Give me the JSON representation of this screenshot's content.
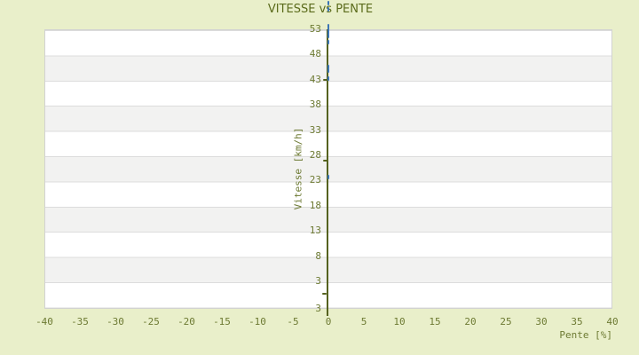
{
  "page": {
    "background": "#e9efca"
  },
  "chart_data": {
    "type": "scatter",
    "title": "VITESSE vs PENTE",
    "xlabel": "Pente [%]",
    "ylabel": "Vitesse [km/h]",
    "xlim": [
      -40,
      40
    ],
    "ylim": [
      -2.5,
      53
    ],
    "xticks": [
      -40,
      -35,
      -30,
      -25,
      -20,
      -15,
      -10,
      -5,
      0,
      5,
      10,
      15,
      20,
      25,
      30,
      35,
      40
    ],
    "yticks": [
      53,
      48,
      43,
      38,
      33,
      28,
      23,
      18,
      13,
      8,
      3
    ],
    "y_axis_edge_label": "3",
    "grid": "horizontal-alternating-bands",
    "legend": "none",
    "colors": {
      "background": "#e9efca",
      "plot_bg": "#ffffff",
      "band_gray": "#f2f2f1",
      "gridline": "#dcdcdc",
      "plot_border": "#d2d2d2",
      "axis_line": "#55621f",
      "tick_text": "#6d7a33",
      "title_text": "#5b6b1b",
      "marker_blue": "#3a74b4",
      "marker_olive": "#55621f"
    },
    "series": [
      {
        "name": "vitesse-points-blue",
        "color": "#3a74b4",
        "marker": "vertical-dash",
        "points": [
          {
            "x": 0,
            "y": 58.2
          },
          {
            "x": 0,
            "y": 57.0
          },
          {
            "x": 0,
            "y": 53.7
          },
          {
            "x": 0,
            "y": 53.0
          },
          {
            "x": 0,
            "y": 52.3
          },
          {
            "x": 0,
            "y": 51.6
          },
          {
            "x": 0,
            "y": 50.5
          },
          {
            "x": 0,
            "y": 45.6
          },
          {
            "x": 0,
            "y": 44.9
          },
          {
            "x": 0,
            "y": 43.3
          },
          {
            "x": 0,
            "y": 23.6
          }
        ]
      },
      {
        "name": "vitesse-points-olive",
        "color": "#55621f",
        "marker": "horizontal-dash",
        "points": [
          {
            "x": -0.4,
            "y": 43.0
          },
          {
            "x": -0.4,
            "y": 27.0
          },
          {
            "x": -0.6,
            "y": 0.5
          }
        ]
      }
    ]
  }
}
